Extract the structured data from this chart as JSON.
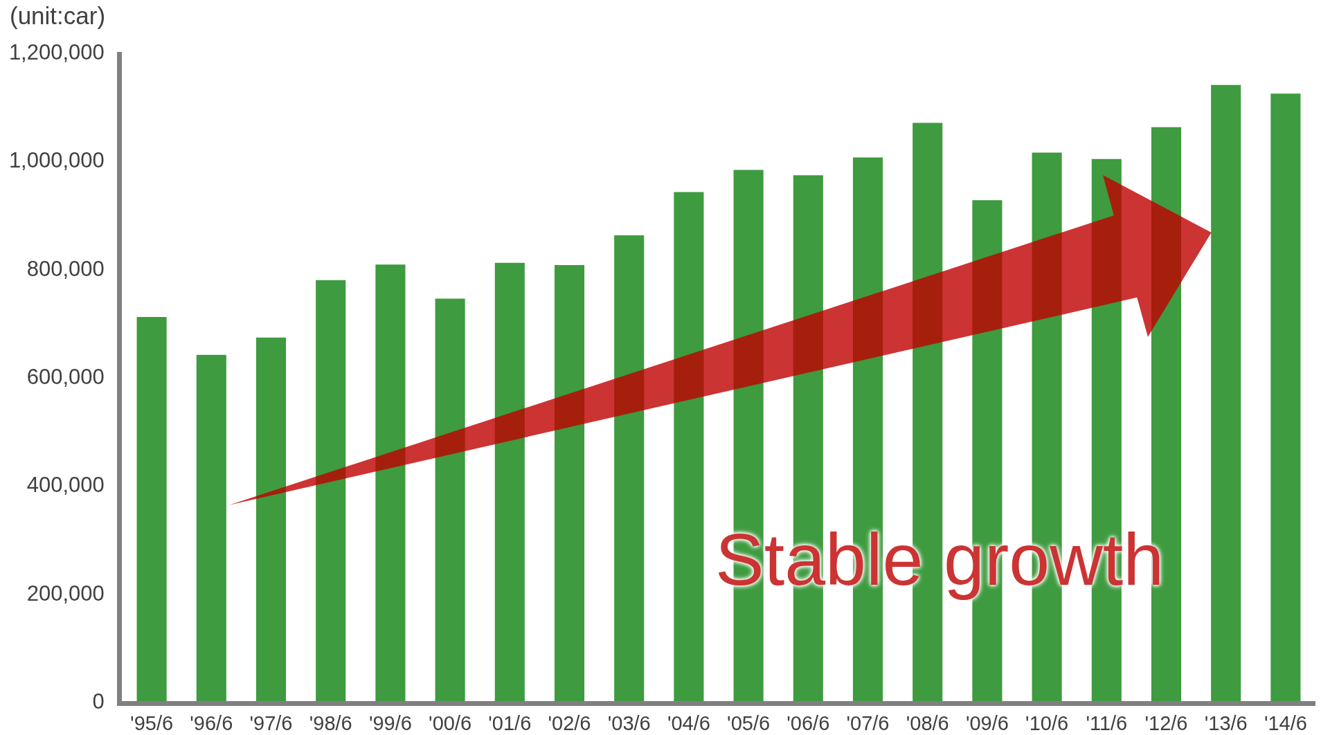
{
  "chart_data": {
    "type": "bar",
    "ylabel": "(unit:car)",
    "categories": [
      "'95/6",
      "'96/6",
      "'97/6",
      "'98/6",
      "'99/6",
      "'00/6",
      "'01/6",
      "'02/6",
      "'03/6",
      "'04/6",
      "'05/6",
      "'06/6",
      "'07/6",
      "'08/6",
      "'09/6",
      "'10/6",
      "'11/6",
      "'12/6",
      "'13/6",
      "'14/6"
    ],
    "values": [
      710000,
      640000,
      672000,
      778000,
      807000,
      744000,
      810000,
      806000,
      861000,
      941000,
      982000,
      972000,
      1005000,
      1069000,
      926000,
      1014000,
      1002000,
      1061000,
      1139000,
      1123000
    ],
    "color": "#3e9b3f",
    "ylim": [
      0,
      1200000
    ],
    "yticks": [
      0,
      {
        "value": 200000,
        "label": "200,000"
      },
      {
        "value": 400000,
        "label": "400,000"
      },
      {
        "value": 600000,
        "label": "600,000"
      },
      {
        "value": 800000,
        "label": "800,000"
      },
      {
        "value": 1000000,
        "label": "1,000,000"
      },
      {
        "value": 1200000,
        "label": "1,200,000"
      }
    ],
    "annotations": [
      "Stable growth"
    ]
  }
}
